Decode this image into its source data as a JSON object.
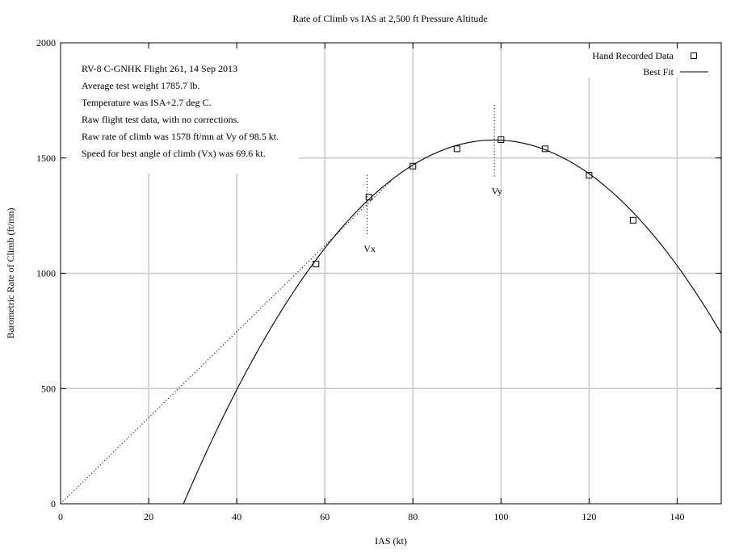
{
  "chart_data": {
    "type": "scatter",
    "title": "Rate of Climb vs IAS at 2,500 ft Pressure Altitude",
    "xlabel": "IAS (kt)",
    "ylabel": "Barometric Rate of Climb (ft/mn)",
    "xlim": [
      0,
      150
    ],
    "ylim": [
      0,
      2000
    ],
    "xticks": [
      0,
      20,
      40,
      60,
      80,
      100,
      120,
      140
    ],
    "yticks": [
      0,
      500,
      1000,
      1500,
      2000
    ],
    "grid": true,
    "legend_position": "top-right",
    "legend": [
      {
        "label": "Hand Recorded Data",
        "marker": "square"
      },
      {
        "label": "Best Fit",
        "marker": "line"
      }
    ],
    "series": [
      {
        "name": "Hand Recorded Data",
        "kind": "points",
        "x": [
          58,
          70,
          80,
          90,
          100,
          110,
          120,
          130
        ],
        "y": [
          1040,
          1330,
          1465,
          1540,
          1580,
          1540,
          1425,
          1230
        ]
      },
      {
        "name": "Best Fit",
        "kind": "curve",
        "model": "quadratic",
        "vertex_x": 98.5,
        "vertex_y": 1578,
        "zero_x": 27.9,
        "domain": [
          27.9,
          150
        ]
      }
    ],
    "tangent_line": {
      "style": "dotted",
      "from": [
        0,
        0
      ],
      "to": [
        75,
        1400
      ]
    },
    "markers": [
      {
        "label": "Vx",
        "x": 69.6,
        "y_range": [
          1170,
          1430
        ]
      },
      {
        "label": "Vy",
        "x": 98.5,
        "y_range": [
          1420,
          1730
        ]
      }
    ],
    "notes": [
      "RV-8 C-GNHK Flight 261, 14 Sep 2013",
      "Average test weight 1785.7 lb.",
      "Temperature was ISA+2.7 deg C.",
      "Raw flight test data, with no corrections.",
      "Raw rate of climb was 1578 ft/mn at Vy of 98.5 kt.",
      "Speed for best angle of climb (Vx) was 69.6 kt."
    ],
    "colors": {
      "line": "#000000",
      "grid": "#c8c8c8",
      "background": "#ffffff"
    }
  }
}
